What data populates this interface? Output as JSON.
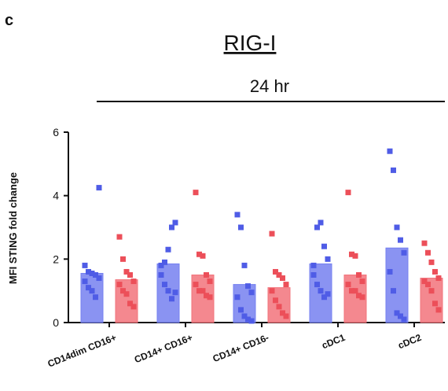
{
  "panel_letter": "c",
  "chart_data": {
    "type": "bar",
    "title": "RIG-I",
    "subtitle": "24 hr",
    "xlabel": "",
    "ylabel": "MFI STING fold change",
    "ylim": [
      0,
      6
    ],
    "yticks": [
      "0",
      "2",
      "4",
      "6"
    ],
    "grid": false,
    "legend": "none",
    "categories": [
      "CD14dim CD16+",
      "CD14+ CD16+",
      "CD14+ CD16-",
      "cDC1",
      "cDC2"
    ],
    "series": [
      {
        "color": "#7580f0",
        "values": [
          1.55,
          1.85,
          1.2,
          1.85,
          2.35
        ],
        "points": [
          [
            1.8,
            1.6,
            1.55,
            1.5,
            1.4,
            1.3,
            1.1,
            1.0,
            0.8,
            4.25
          ],
          [
            1.8,
            1.9,
            2.3,
            3.0,
            3.15,
            1.5,
            1.2,
            1.0,
            0.75,
            0.95
          ],
          [
            3.4,
            3.0,
            1.8,
            1.15,
            0.95,
            0.8,
            0.4,
            0.2,
            0.1,
            0.05
          ],
          [
            1.8,
            3.0,
            3.15,
            2.4,
            2.0,
            1.5,
            1.2,
            1.0,
            0.8,
            0.9
          ],
          [
            5.4,
            4.8,
            3.0,
            2.6,
            2.2,
            1.6,
            1.0,
            0.3,
            0.2,
            0.1
          ]
        ]
      },
      {
        "color": "#f2737b",
        "values": [
          1.35,
          1.5,
          1.1,
          1.5,
          1.4
        ],
        "points": [
          [
            2.7,
            2.0,
            1.6,
            1.5,
            1.3,
            1.2,
            1.0,
            0.9,
            0.6,
            0.5
          ],
          [
            4.1,
            2.15,
            2.1,
            1.5,
            1.3,
            1.2,
            1.0,
            1.0,
            0.85,
            0.8
          ],
          [
            2.8,
            1.6,
            1.5,
            1.4,
            1.2,
            1.0,
            0.7,
            0.5,
            0.3,
            0.2
          ],
          [
            4.1,
            2.15,
            2.1,
            1.5,
            1.3,
            1.2,
            1.0,
            1.0,
            0.85,
            0.8
          ],
          [
            2.5,
            2.2,
            1.9,
            1.6,
            1.4,
            1.3,
            1.2,
            1.0,
            0.6,
            0.4
          ]
        ]
      }
    ]
  }
}
